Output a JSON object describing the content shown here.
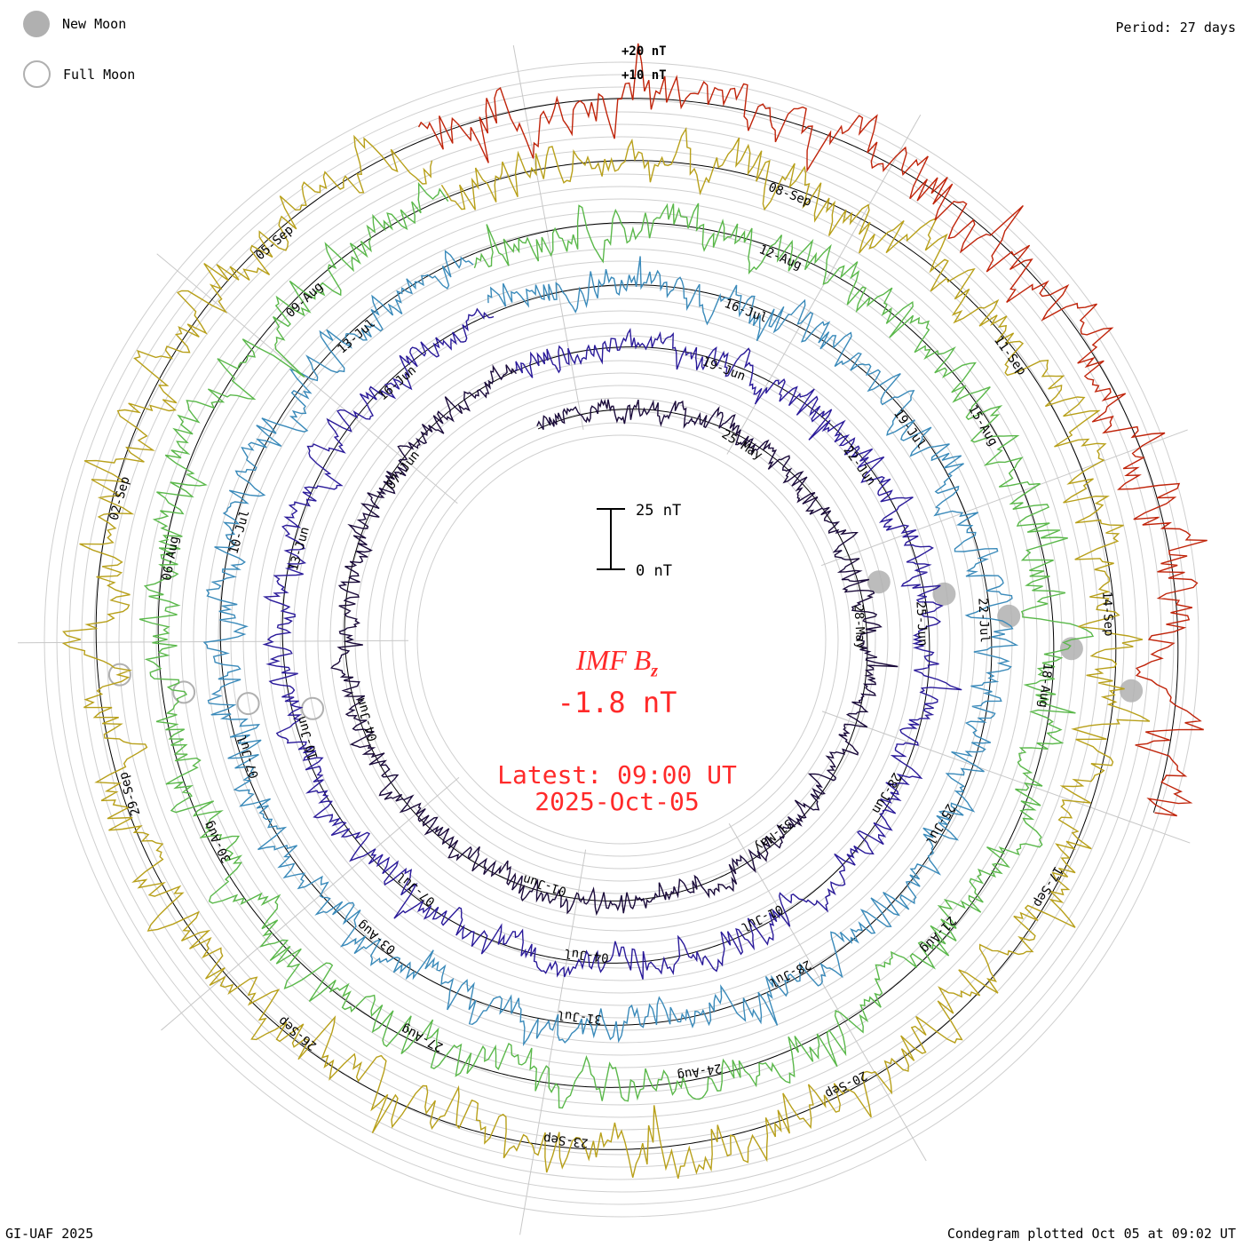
{
  "legend": {
    "new_moon_label": "New Moon",
    "full_moon_label": "Full Moon",
    "new_moon_color": "#b0b0b0"
  },
  "period_label": "Period: 27 days",
  "credit": "GI-UAF 2025",
  "plotted_label": "Condegram plotted Oct 05 at 09:02 UT",
  "center": {
    "variable": "IMF Bz",
    "variable_main": "IMF B",
    "variable_sub": "z",
    "value_label": "-1.8 nT",
    "latest_label": "Latest: 09:00 UT",
    "date_label": "2025-Oct-05",
    "color": "#ff2a2a"
  },
  "chart_data": {
    "type": "line",
    "subtype": "condegram spiral",
    "title": "IMF Bz",
    "units": "nT",
    "period_days": 27,
    "ring_labels": [
      "+20 nT",
      "+10 nT"
    ],
    "scale_bar": {
      "top_label": "25 nT",
      "bottom_label": "0 nT",
      "value_nT": 25
    },
    "series": [
      {
        "name": "cycle-1",
        "color": "#1a0a3a",
        "date_labels": [
          "25-May",
          "28-May",
          "31-May",
          "01-Jun",
          "04-Jun",
          "07-Jun"
        ]
      },
      {
        "name": "cycle-2",
        "color": "#2a1a9a",
        "date_labels": [
          "19-Jun",
          "22-Jun",
          "25-Jun",
          "28-Jun",
          "01-Jul",
          "04-Jul",
          "07-Jul",
          "10-Jun",
          "13-Jun",
          "16-Jun"
        ]
      },
      {
        "name": "cycle-3",
        "color": "#3a8aba",
        "date_labels": [
          "16-Jul",
          "19-Jul",
          "22-Jul",
          "25-Jul",
          "28-Jul",
          "31-Jul",
          "03-Aug",
          "07-Jul",
          "10-Jul",
          "13-Jul"
        ]
      },
      {
        "name": "cycle-4",
        "color": "#5ab84a",
        "date_labels": [
          "12-Aug",
          "15-Aug",
          "18-Aug",
          "21-Aug",
          "24-Aug",
          "27-Aug",
          "30-Aug",
          "06-Aug",
          "09-Aug"
        ]
      },
      {
        "name": "cycle-5",
        "color": "#b8a01a",
        "date_labels": [
          "08-Sep",
          "11-Sep",
          "14-Sep",
          "17-Sep",
          "20-Sep",
          "23-Sep",
          "26-Sep",
          "29-Sep",
          "02-Sep",
          "05-Sep"
        ]
      },
      {
        "name": "cycle-6",
        "color": "#c0240a",
        "date_labels": []
      }
    ],
    "moon_markers": {
      "new_moon_dates": [
        "25-May",
        "25-Jun",
        "25-Jul",
        "23-Aug",
        "21-Sep"
      ],
      "full_moon_dates": [
        "10-Jun",
        "10-Jul",
        "09-Aug",
        "07-Sep"
      ]
    },
    "latest": {
      "time": "09:00 UT",
      "date": "2025-Oct-05",
      "value_nT": -1.8
    }
  }
}
